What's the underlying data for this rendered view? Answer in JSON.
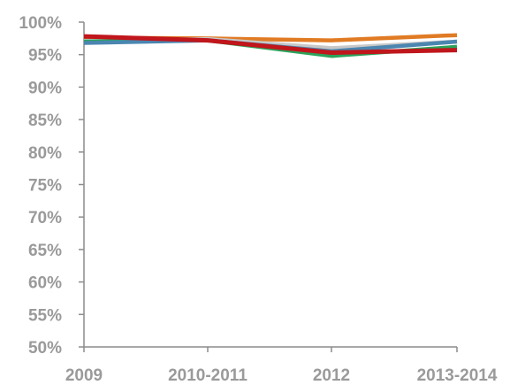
{
  "chart_data": {
    "type": "line",
    "categories": [
      "2009",
      "2010-2011",
      "2012",
      "2013-2014"
    ],
    "ylim": [
      0.5,
      1.0
    ],
    "yticks": [
      "50%",
      "55%",
      "60%",
      "65%",
      "70%",
      "75%",
      "80%",
      "85%",
      "90%",
      "95%",
      "100%"
    ],
    "grid": false,
    "legend": "none",
    "series": [
      {
        "color": "#e07b24",
        "values": [
          0.976,
          0.975,
          0.972,
          0.98
        ]
      },
      {
        "color": "#c8c8c8",
        "values": [
          0.971,
          0.974,
          0.96,
          0.97
        ]
      },
      {
        "color": "#2aa35a",
        "values": [
          0.97,
          0.972,
          0.948,
          0.962
        ]
      },
      {
        "color": "#4a86b0",
        "values": [
          0.968,
          0.972,
          0.955,
          0.97
        ]
      },
      {
        "color": "#c0161c",
        "values": [
          0.978,
          0.972,
          0.953,
          0.957
        ]
      }
    ]
  }
}
